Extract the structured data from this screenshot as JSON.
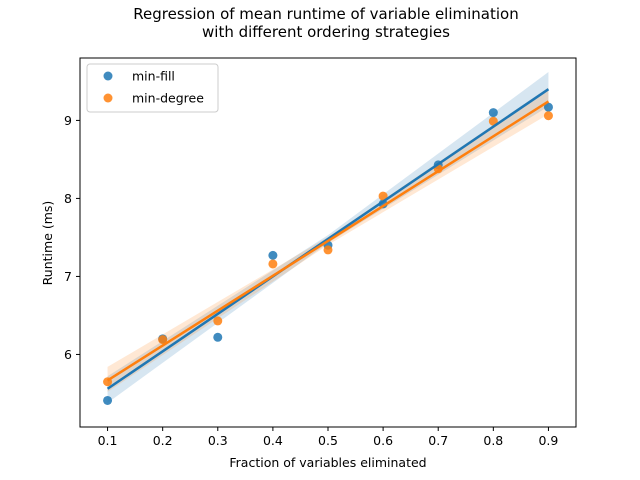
{
  "chart_data": {
    "type": "scatter",
    "title_line1": "Regression of mean runtime of variable elimination",
    "title_line2": "with different ordering strategies",
    "xlabel": "Fraction of variables eliminated",
    "ylabel": "Runtime (ms)",
    "xlim": [
      0.05,
      0.95
    ],
    "ylim": [
      5.07,
      9.8
    ],
    "xticks": [
      0.1,
      0.2,
      0.3,
      0.4,
      0.5,
      0.6,
      0.7,
      0.8,
      0.9
    ],
    "xtick_labels": [
      "0.1",
      "0.2",
      "0.3",
      "0.4",
      "0.5",
      "0.6",
      "0.7",
      "0.8",
      "0.9"
    ],
    "yticks": [
      6,
      7,
      8,
      9
    ],
    "ytick_labels": [
      "6",
      "7",
      "8",
      "9"
    ],
    "grid": false,
    "legend_position": "top-left",
    "series": [
      {
        "name": "min-fill",
        "color": "#1f77b4",
        "x": [
          0.1,
          0.2,
          0.3,
          0.4,
          0.5,
          0.6,
          0.7,
          0.8,
          0.9
        ],
        "y": [
          5.41,
          6.2,
          6.22,
          7.27,
          7.4,
          7.93,
          8.43,
          9.1,
          9.17
        ],
        "regression": {
          "intercept": 5.08,
          "slope": 4.8
        },
        "ci_band": {
          "lower_ends": [
            5.38,
            9.18
          ],
          "upper_ends": [
            5.72,
            9.62
          ]
        }
      },
      {
        "name": "min-degree",
        "color": "#ff7f0e",
        "x": [
          0.1,
          0.2,
          0.3,
          0.4,
          0.5,
          0.6,
          0.7,
          0.8,
          0.9
        ],
        "y": [
          5.65,
          6.19,
          6.43,
          7.16,
          7.34,
          8.03,
          8.38,
          8.99,
          9.06
        ],
        "regression": {
          "intercept": 5.22,
          "slope": 4.47
        },
        "ci_band": {
          "lower_ends": [
            5.52,
            9.08
          ],
          "upper_ends": [
            5.84,
            9.42
          ]
        }
      }
    ]
  }
}
